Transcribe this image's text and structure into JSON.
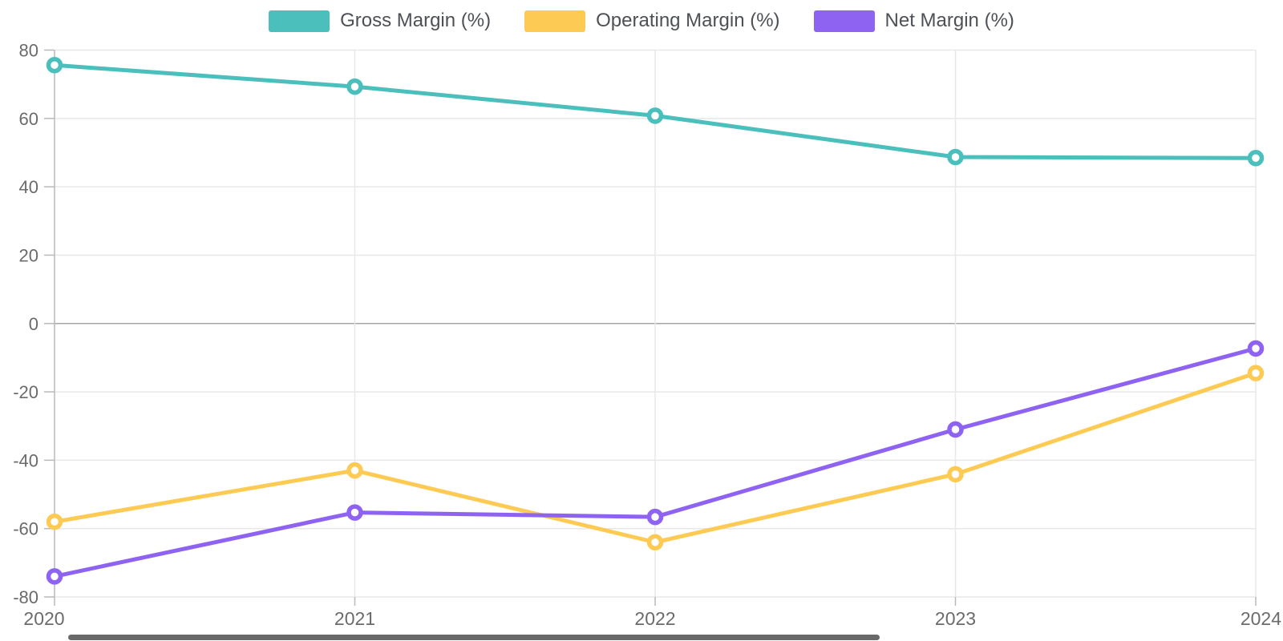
{
  "chart_data": {
    "type": "line",
    "categories": [
      "2020",
      "2021",
      "2022",
      "2023",
      "2024"
    ],
    "series": [
      {
        "name": "Gross Margin (%)",
        "color": "#4ABFBC",
        "values": [
          75.6,
          69.3,
          60.8,
          48.7,
          48.4
        ]
      },
      {
        "name": "Operating Margin (%)",
        "color": "#FDCB54",
        "values": [
          -58.0,
          -43.0,
          -64.0,
          -44.1,
          -14.5
        ]
      },
      {
        "name": "Net Margin (%)",
        "color": "#8F63F2",
        "values": [
          -74.0,
          -55.3,
          -56.6,
          -31.0,
          -7.3
        ]
      }
    ],
    "ylim": [
      -80,
      80
    ],
    "yticks": [
      80,
      60,
      40,
      20,
      0,
      -20,
      -40,
      -60,
      -80
    ],
    "xlabel": "",
    "ylabel": "",
    "title": "",
    "legend_position": "top",
    "grid": true,
    "x_boundary_gap": false,
    "marker": "hollow-circle",
    "line_width": 5
  },
  "colors": {
    "background": "#ffffff",
    "gridline": "#e8e8e8",
    "zero_line": "#a6a6a6",
    "axis_line": "#b9b9b9",
    "axis_label": "#6b6b6b",
    "legend_label": "#4d5156",
    "marker_fill": "#ffffff",
    "scrollbar_thumb": "#3f3f3f"
  }
}
